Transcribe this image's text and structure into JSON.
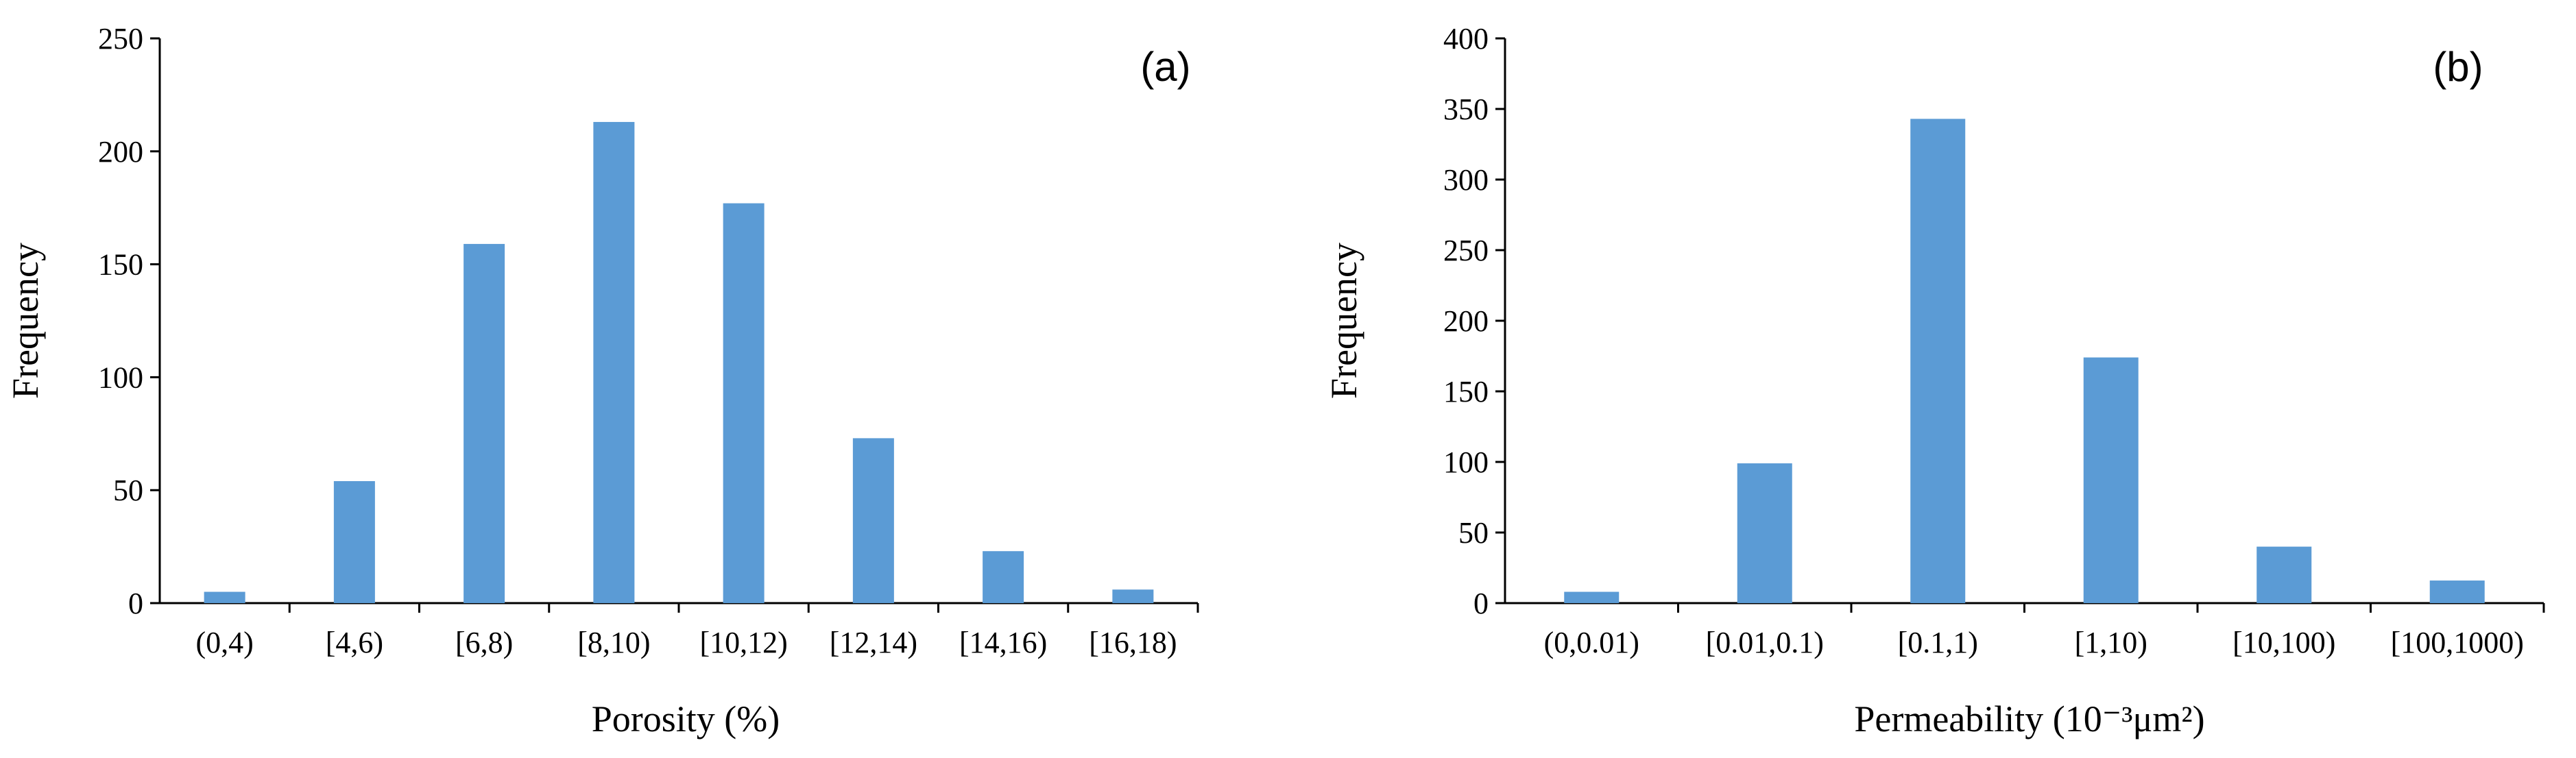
{
  "colors": {
    "bar": "#5b9bd5",
    "axis": "#000000"
  },
  "chart_data": [
    {
      "type": "bar",
      "panel_label": "(a)",
      "xlabel": "Porosity (%)",
      "ylabel": "Frequency",
      "ylim": [
        0,
        250
      ],
      "yticks": [
        0,
        50,
        100,
        150,
        200,
        250
      ],
      "categories": [
        "(0,4)",
        "[4,6)",
        "[6,8)",
        "[8,10)",
        "[10,12)",
        "[12,14)",
        "[14,16)",
        "[16,18)"
      ],
      "values": [
        5,
        54,
        159,
        213,
        177,
        73,
        23,
        6
      ],
      "grid": false,
      "legend": "none"
    },
    {
      "type": "bar",
      "panel_label": "(b)",
      "xlabel": "Permeability (10⁻³μm²)",
      "ylabel": "Frequency",
      "ylim": [
        0,
        400
      ],
      "yticks": [
        0,
        50,
        100,
        150,
        200,
        250,
        300,
        350,
        400
      ],
      "categories": [
        "(0,0.01)",
        "[0.01,0.1)",
        "[0.1,1)",
        "[1,10)",
        "[10,100)",
        "[100,1000)"
      ],
      "values": [
        8,
        99,
        343,
        174,
        40,
        16
      ],
      "grid": false,
      "legend": "none"
    }
  ]
}
